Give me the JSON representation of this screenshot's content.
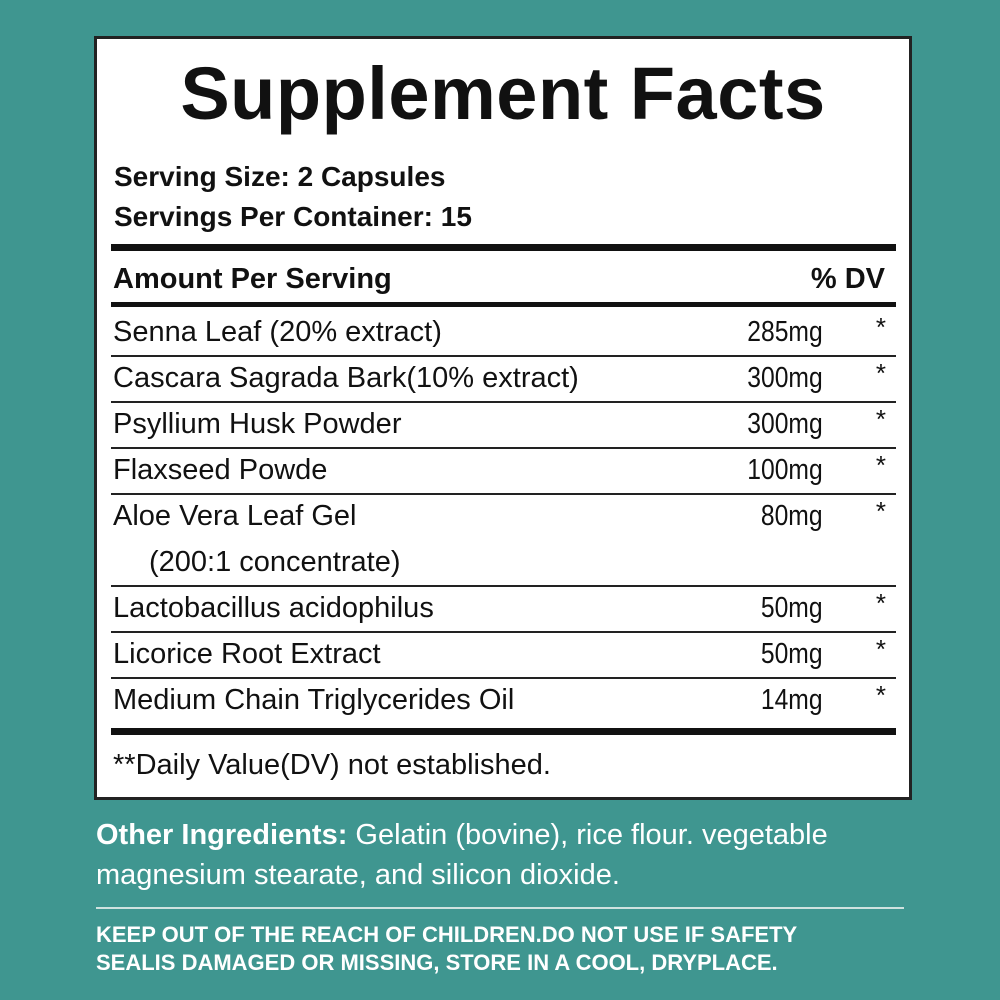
{
  "title": "Supplement Facts",
  "serving_size": "Serving Size: 2 Capsules",
  "servings_per_container": "Servings Per Container: 15",
  "header": {
    "amount": "Amount Per Serving",
    "dv": "% DV"
  },
  "ingredients": [
    {
      "name": "Senna Leaf (20% extract)",
      "amount": "285mg",
      "dv": "*"
    },
    {
      "name": "Cascara Sagrada Bark(10% extract)",
      "amount": "300mg",
      "dv": "*"
    },
    {
      "name": "Psyllium Husk Powder",
      "amount": "300mg",
      "dv": "*"
    },
    {
      "name": "Flaxseed Powde",
      "amount": "100mg",
      "dv": "*"
    },
    {
      "name": "Aloe Vera Leaf Gel",
      "sub": "(200:1 concentrate)",
      "amount": "80mg",
      "dv": "*"
    },
    {
      "name": "Lactobacillus acidophilus",
      "amount": "50mg",
      "dv": "*"
    },
    {
      "name": "Licorice Root Extract",
      "amount": "50mg",
      "dv": "*"
    },
    {
      "name": "Medium Chain Triglycerides Oil",
      "amount": "14mg",
      "dv": "*"
    }
  ],
  "footnote": "**Daily Value(DV) not established.",
  "other_ingredients": {
    "label": "Other Ingredients:",
    "line1": " Gelatin (bovine), rice flour. vegetable",
    "line2": "magnesium stearate, and silicon dioxide."
  },
  "warning": {
    "line1": "KEEP OUT OF THE REACH OF CHILDREN.DO NOT USE IF SAFETY",
    "line2": "SEALIS DAMAGED OR MISSING, STORE IN A COOL, DRYPLACE."
  },
  "colors": {
    "background": "#3f9690",
    "panel": "#ffffff",
    "text": "#111111"
  }
}
